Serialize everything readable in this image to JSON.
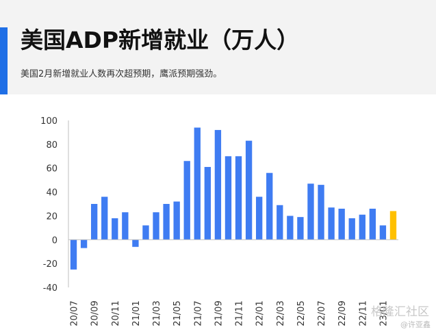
{
  "header": {
    "title": "美国ADP新增就业（万人）",
    "subtitle": "美国2月新增就业人数再次超预期，鹰派预期强劲。"
  },
  "watermark": {
    "brand": "格隆汇社区",
    "author": "@许亚鑫"
  },
  "colors": {
    "bar": "#3f7cf2",
    "highlight": "#ffc000",
    "accent": "#1f6fe6"
  },
  "chart_data": {
    "type": "bar",
    "categories": [
      "20/07",
      "20/08",
      "20/09",
      "20/10",
      "20/11",
      "20/12",
      "21/01",
      "21/02",
      "21/03",
      "21/04",
      "21/05",
      "21/06",
      "21/07",
      "21/08",
      "21/09",
      "21/10",
      "21/11",
      "21/12",
      "22/01",
      "22/02",
      "22/03",
      "22/04",
      "22/05",
      "22/06",
      "22/07",
      "22/08",
      "22/09",
      "22/10",
      "22/11",
      "22/12",
      "23/01",
      "23/02"
    ],
    "tick_labels": [
      "20/07",
      "",
      "20/09",
      "",
      "20/11",
      "",
      "21/01",
      "",
      "21/03",
      "",
      "21/05",
      "",
      "21/07",
      "",
      "21/09",
      "",
      "21/11",
      "",
      "22/01",
      "",
      "22/03",
      "",
      "22/05",
      "",
      "22/07",
      "",
      "22/09",
      "",
      "22/11",
      "",
      "23/01",
      ""
    ],
    "values": [
      -25,
      -7,
      30,
      36,
      18,
      23,
      -6,
      12,
      23,
      30,
      32,
      66,
      94,
      61,
      92,
      70,
      70,
      83,
      36,
      56,
      29,
      20,
      19,
      47,
      46,
      27,
      26,
      18,
      21,
      26,
      12,
      24
    ],
    "highlight_index": 31,
    "yticks": [
      100,
      80,
      60,
      40,
      20,
      0,
      -20,
      -40
    ],
    "ylim": [
      -40,
      100
    ],
    "grid": false,
    "legend": "none"
  }
}
